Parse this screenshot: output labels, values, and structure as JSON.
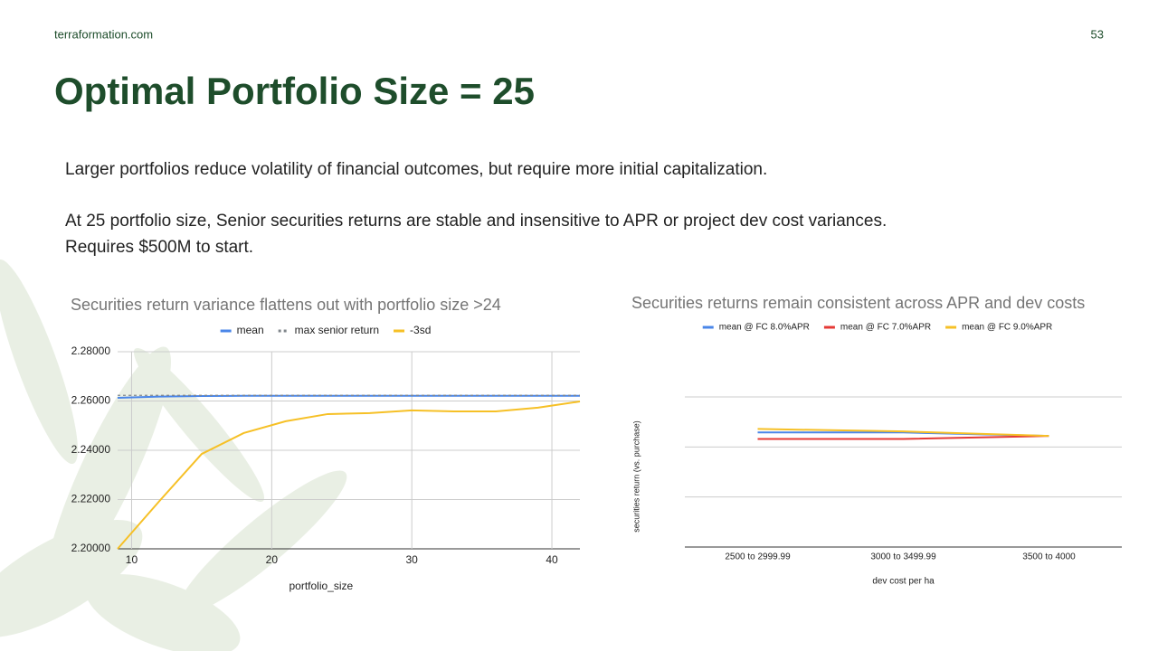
{
  "slide": {
    "site": "terraformation.com",
    "page": "53",
    "title": "Optimal Portfolio Size = 25",
    "paragraphs": [
      "Larger portfolios reduce volatility of financial outcomes, but require more initial capitalization.",
      "At 25 portfolio size, Senior securities returns are stable and insensitive to APR or project dev cost variances.",
      "Requires $500M to start."
    ]
  },
  "chart_data": [
    {
      "type": "line",
      "title": "Securities return variance flattens out with portfolio size >24",
      "x_label": "portfolio_size",
      "x": [
        9,
        12,
        15,
        18,
        21,
        24,
        27,
        30,
        33,
        36,
        39,
        42
      ],
      "xlim": [
        9,
        42
      ],
      "xticks": [
        10,
        20,
        30,
        40
      ],
      "ylim": [
        2.2,
        2.28
      ],
      "yticks": [
        {
          "value": 2.2,
          "label": "2.20000"
        },
        {
          "value": 2.22,
          "label": "2.22000"
        },
        {
          "value": 2.24,
          "label": "2.24000"
        },
        {
          "value": 2.26,
          "label": "2.26000"
        },
        {
          "value": 2.28,
          "label": "2.28000"
        }
      ],
      "grid": true,
      "legend": "top",
      "series": [
        {
          "name": "mean",
          "color": "#4a86e8",
          "values": [
            2.2613,
            2.2618,
            2.262,
            2.2621,
            2.2621,
            2.2621,
            2.2621,
            2.2621,
            2.2621,
            2.2621,
            2.2621,
            2.2621
          ]
        },
        {
          "name": "max senior return",
          "color": "#80868b",
          "style": "dashed",
          "values": [
            2.2623,
            2.2623,
            2.2623,
            2.2623,
            2.2623,
            2.2623,
            2.2623,
            2.2623,
            2.2623,
            2.2623,
            2.2623,
            2.2623
          ]
        },
        {
          "name": "-3sd",
          "color": "#f6c026",
          "values": [
            2.2,
            2.2195,
            2.2385,
            2.247,
            2.2518,
            2.2547,
            2.2551,
            2.2562,
            2.2558,
            2.2558,
            2.2573,
            2.2598
          ]
        }
      ]
    },
    {
      "type": "line",
      "title": "Securities returns remain consistent across APR and dev costs",
      "x_label": "dev cost per ha",
      "y_label": "securities return (vs. purchase)",
      "categories": [
        "2500 to 2999.99",
        "3000 to 3499.99",
        "3500 to 4000"
      ],
      "ylim": [
        2.0,
        2.3
      ],
      "yticks": [
        2.0,
        2.1,
        2.2,
        2.3
      ],
      "grid": true,
      "tick_labels": false,
      "legend": "top",
      "series": [
        {
          "name": "mean @ FC 8.0%APR",
          "color": "#4a86e8",
          "values": [
            2.229,
            2.229,
            2.222
          ]
        },
        {
          "name": "mean @ FC 7.0%APR",
          "color": "#e53935",
          "values": [
            2.216,
            2.216,
            2.222
          ]
        },
        {
          "name": "mean @ FC 9.0%APR",
          "color": "#f6c026",
          "values": [
            2.236,
            2.231,
            2.222
          ]
        }
      ]
    }
  ]
}
